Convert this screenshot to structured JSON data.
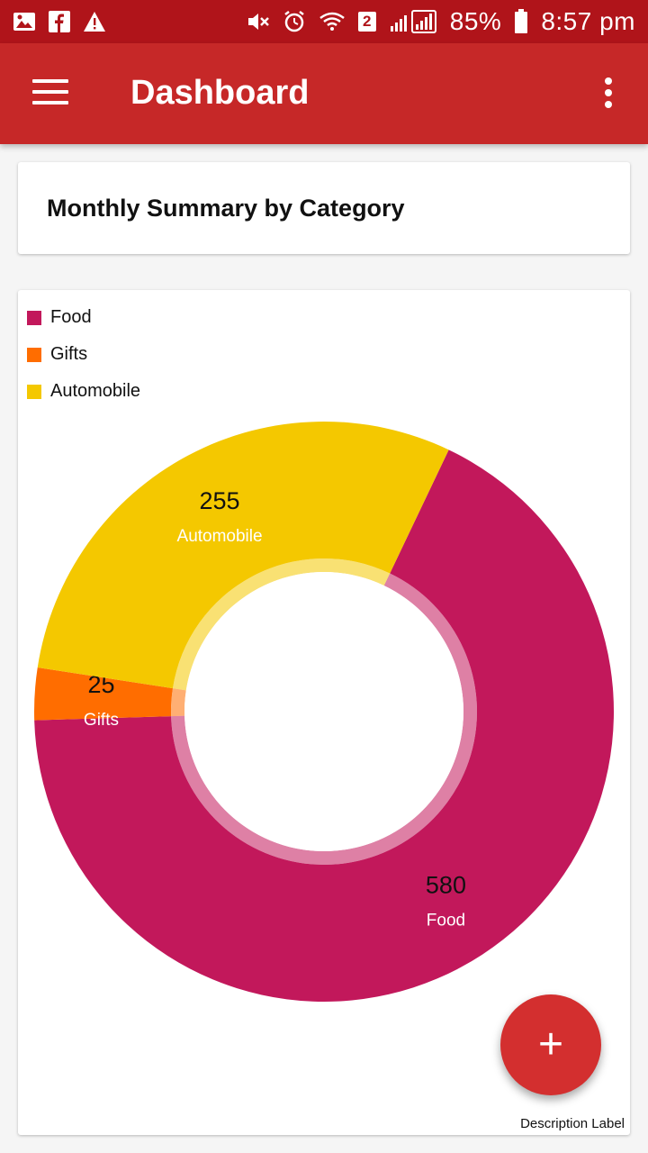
{
  "status_bar": {
    "battery_text": "85%",
    "time": "8:57 pm",
    "sim_badge": "2",
    "icons": [
      "image-icon",
      "facebook-icon",
      "warning-icon",
      "mute-icon",
      "alarm-icon",
      "wifi-icon",
      "signal-icon",
      "battery-icon"
    ]
  },
  "app_bar": {
    "title": "Dashboard",
    "menu_icon": "hamburger-menu-icon",
    "overflow_icon": "more-vertical-icon"
  },
  "summary_card": {
    "title": "Monthly Summary by Category"
  },
  "chart_data": {
    "type": "pie",
    "donut": true,
    "categories": [
      "Food",
      "Gifts",
      "Automobile"
    ],
    "values": [
      580,
      25,
      255
    ],
    "colors": [
      "#c2185b",
      "#ff6d00",
      "#f4c800"
    ],
    "legend_position": "top-left",
    "slice_labels": [
      {
        "value": "580",
        "label": "Food"
      },
      {
        "value": "25",
        "label": "Gifts"
      },
      {
        "value": "255",
        "label": "Automobile"
      }
    ],
    "description": "Description Label"
  },
  "fab": {
    "icon": "add-icon",
    "symbol": "+"
  }
}
